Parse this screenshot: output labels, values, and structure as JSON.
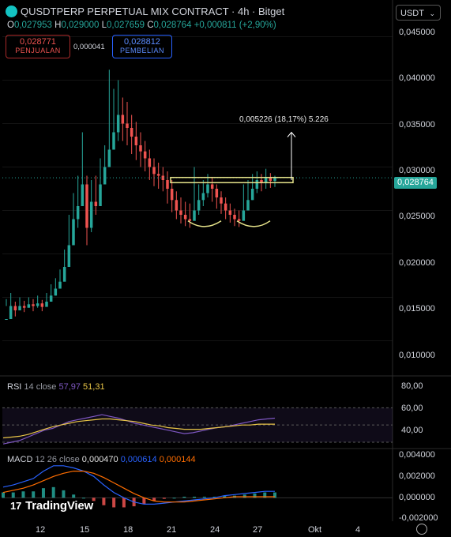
{
  "header": {
    "title": "QUSDTPERP PERPETUAL MIX CONTRACT · 4h · Bitget",
    "ohlc": [
      {
        "k": "O",
        "v": "0,027953"
      },
      {
        "k": "H",
        "v": "0,029000"
      },
      {
        "k": "L",
        "v": "0,027659"
      },
      {
        "k": "C",
        "v": "0,028764"
      }
    ],
    "change": "+0,000811 (+2,90%)",
    "sell_price": "0,028771",
    "sell_label": "PENJUALAN",
    "spread": "0,000041",
    "buy_price": "0,028812",
    "buy_label": "PEMBELIAN",
    "currency": "USDT",
    "currency_chevron": "⌄"
  },
  "colors": {
    "up": "#26a69a",
    "down": "#ef5350",
    "rsi": "#7e57c2",
    "rsi_ma": "#e8c547",
    "macd": "#2962ff",
    "signal": "#ff6d00",
    "pattern": "#e6e38a"
  },
  "price_axis": {
    "ticks": [
      "0,045000",
      "0,040000",
      "0,035000",
      "0,030000",
      "0,025000",
      "0,020000",
      "0,015000",
      "0,010000"
    ],
    "last_price": "0,028764"
  },
  "time_axis": {
    "ticks": [
      "12",
      "15",
      "18",
      "21",
      "24",
      "27",
      "Okt",
      "4"
    ]
  },
  "measure_label": "0,005226 (18,17%) 5.226",
  "rsi": {
    "title": "RSI",
    "params": "14 close",
    "value": "57,97",
    "ma_value": "51,31",
    "ticks": [
      "80,00",
      "60,00",
      "40,00"
    ]
  },
  "macd": {
    "title": "MACD",
    "params": "12 26 close",
    "hist_value": "0,000470",
    "macd_value": "0,000614",
    "signal_value": "0,000144",
    "ticks": [
      "0,004000",
      "0,002000",
      "0,000000",
      "-0,002000"
    ]
  },
  "branding": {
    "name": "TradingView",
    "mark": "17"
  },
  "chart_data": {
    "type": "candlestick",
    "timeframe": "4h",
    "y_range": [
      0.0065,
      0.0465
    ],
    "x_ticks": [
      "12",
      "15",
      "18",
      "21",
      "24",
      "27",
      "Okt",
      "4"
    ],
    "close_path": [
      [
        0.0125,
        0.0148,
        0.014
      ],
      [
        0.014,
        0.0155,
        0.0132
      ],
      [
        0.0135,
        0.0145,
        0.0128
      ],
      [
        0.014,
        0.015,
        0.0135
      ],
      [
        0.0138,
        0.0146,
        0.0133
      ],
      [
        0.0142,
        0.015,
        0.0138
      ],
      [
        0.014,
        0.0148,
        0.0134
      ],
      [
        0.0143,
        0.0152,
        0.0138
      ],
      [
        0.0139,
        0.0147,
        0.0134
      ],
      [
        0.0145,
        0.0155,
        0.014
      ],
      [
        0.0152,
        0.0165,
        0.0146
      ],
      [
        0.016,
        0.0172,
        0.0152
      ],
      [
        0.0168,
        0.0182,
        0.016
      ],
      [
        0.0185,
        0.0205,
        0.0175
      ],
      [
        0.021,
        0.0245,
        0.02
      ],
      [
        0.024,
        0.027,
        0.022
      ],
      [
        0.0255,
        0.029,
        0.023
      ],
      [
        0.028,
        0.034,
        0.026
      ],
      [
        0.023,
        0.029,
        0.021
      ],
      [
        0.026,
        0.0285,
        0.0225
      ],
      [
        0.0255,
        0.029,
        0.0245
      ],
      [
        0.028,
        0.031,
        0.026
      ],
      [
        0.03,
        0.0325,
        0.028
      ],
      [
        0.032,
        0.0412,
        0.03
      ],
      [
        0.034,
        0.039,
        0.032
      ],
      [
        0.036,
        0.04,
        0.033
      ],
      [
        0.035,
        0.038,
        0.033
      ],
      [
        0.0345,
        0.0375,
        0.0325
      ],
      [
        0.0335,
        0.036,
        0.0315
      ],
      [
        0.0325,
        0.0352,
        0.0308
      ],
      [
        0.0318,
        0.034,
        0.03
      ],
      [
        0.031,
        0.033,
        0.0295
      ],
      [
        0.03,
        0.032,
        0.0285
      ],
      [
        0.0292,
        0.031,
        0.0278
      ],
      [
        0.029,
        0.0305,
        0.0275
      ],
      [
        0.0285,
        0.03,
        0.0272
      ],
      [
        0.0275,
        0.0295,
        0.0258
      ],
      [
        0.0262,
        0.0285,
        0.0248
      ],
      [
        0.025,
        0.0272,
        0.024
      ],
      [
        0.0245,
        0.0265,
        0.0235
      ],
      [
        0.024,
        0.026,
        0.0232
      ],
      [
        0.0238,
        0.0258,
        0.023
      ],
      [
        0.025,
        0.03,
        0.024
      ],
      [
        0.0262,
        0.028,
        0.0245
      ],
      [
        0.027,
        0.0285,
        0.0255
      ],
      [
        0.028,
        0.0292,
        0.0265
      ],
      [
        0.0275,
        0.0288,
        0.026
      ],
      [
        0.0265,
        0.028,
        0.0252
      ],
      [
        0.0258,
        0.0272,
        0.0246
      ],
      [
        0.025,
        0.0265,
        0.024
      ],
      [
        0.0245,
        0.0258,
        0.0236
      ],
      [
        0.024,
        0.0252,
        0.0232
      ],
      [
        0.0238,
        0.025,
        0.0231
      ],
      [
        0.025,
        0.028,
        0.024
      ],
      [
        0.0262,
        0.0285,
        0.025
      ],
      [
        0.0275,
        0.0292,
        0.0262
      ],
      [
        0.0285,
        0.0295,
        0.027
      ],
      [
        0.0282,
        0.0292,
        0.0272
      ],
      [
        0.0288,
        0.0298,
        0.0275
      ],
      [
        0.0284,
        0.0293,
        0.0276
      ],
      [
        0.0288,
        0.029,
        0.0277
      ]
    ],
    "rsi_path": [
      28,
      30,
      32,
      36,
      40,
      44,
      46,
      50,
      54,
      56,
      58,
      60,
      62,
      60,
      58,
      55,
      52,
      50,
      48,
      46,
      44,
      42,
      40,
      41,
      43,
      45,
      47,
      48,
      50,
      52,
      54,
      56,
      57,
      58
    ],
    "rsi_ma_path": [
      35,
      36,
      37,
      39,
      42,
      45,
      48,
      50,
      52,
      54,
      55,
      56,
      57,
      57,
      56,
      55,
      54,
      52,
      50,
      49,
      47,
      46,
      45,
      45,
      45,
      46,
      47,
      48,
      49,
      50,
      50,
      51,
      51,
      51
    ],
    "macd_path": [
      0.001,
      0.0012,
      0.0015,
      0.0018,
      0.0025,
      0.003,
      0.003,
      0.0028,
      0.0025,
      0.002,
      0.0012,
      0.0005,
      0.0,
      -0.0004,
      -0.0006,
      -0.0006,
      -0.0005,
      -0.0004,
      -0.0003,
      -0.0002,
      -0.0001,
      0.0,
      0.0002,
      0.0003,
      0.0004,
      0.0005,
      0.0006,
      0.0006
    ],
    "signal_path": [
      0.0005,
      0.0007,
      0.0009,
      0.0012,
      0.0016,
      0.002,
      0.0023,
      0.0025,
      0.0025,
      0.0023,
      0.0019,
      0.0014,
      0.0009,
      0.0004,
      0.0,
      -0.0003,
      -0.0004,
      -0.0004,
      -0.0004,
      -0.0003,
      -0.0002,
      -0.0001,
      0.0,
      0.0001,
      0.0001,
      0.0001,
      0.0001,
      0.0001
    ],
    "grid": true
  }
}
